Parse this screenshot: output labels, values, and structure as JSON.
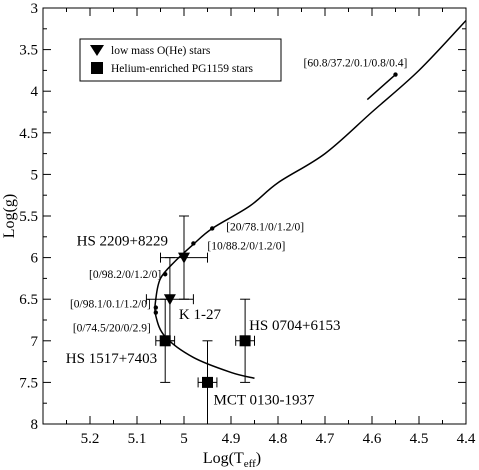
{
  "chart_data": {
    "type": "scatter",
    "title": "",
    "xlabel": "Log(T",
    "xlabel_sub": "eff",
    "xlabel_close": ")",
    "ylabel": "Log(g)",
    "x_reversed": true,
    "y_reversed": true,
    "xlim": [
      5.3,
      4.4
    ],
    "ylim": [
      3.0,
      8.0
    ],
    "x_ticks": [
      "5.2",
      "5.1",
      "5",
      "4.9",
      "4.8",
      "4.7",
      "4.6",
      "4.5",
      "4.4"
    ],
    "x_tick_values": [
      5.2,
      5.1,
      5.0,
      4.9,
      4.8,
      4.7,
      4.6,
      4.5,
      4.4
    ],
    "y_ticks": [
      "3",
      "3.5",
      "4",
      "4.5",
      "5",
      "5.5",
      "6",
      "6.5",
      "7",
      "7.5",
      "8"
    ],
    "y_tick_values": [
      3.0,
      3.5,
      4.0,
      4.5,
      5.0,
      5.5,
      6.0,
      6.5,
      7.0,
      7.5,
      8.0
    ],
    "grid": false,
    "legend_position": "top-left",
    "legend": [
      {
        "label": "low mass O(He) stars",
        "marker": "triangle-down"
      },
      {
        "label": "Helium-enriched PG1159 stars",
        "marker": "square"
      }
    ],
    "series": [
      {
        "name": "low mass O(He) stars",
        "marker": "triangle-down",
        "points": [
          {
            "label": "HS 2209+8229",
            "x": 5.0,
            "y": 6.0,
            "xerr": 0.05,
            "yerr": 0.5
          },
          {
            "label": "K 1-27",
            "x": 5.03,
            "y": 6.5,
            "xerr": 0.05,
            "yerr": 0.5
          }
        ]
      },
      {
        "name": "Helium-enriched PG1159 stars",
        "marker": "square",
        "points": [
          {
            "label": "HS 0704+6153",
            "x": 4.87,
            "y": 7.0,
            "xerr": 0.02,
            "yerr": 0.5
          },
          {
            "label": "HS 1517+7403",
            "x": 5.04,
            "y": 7.0,
            "xerr": 0.02,
            "yerr": 0.5
          },
          {
            "label": "MCT 0130-1937",
            "x": 4.95,
            "y": 7.5,
            "xerr": 0.02,
            "yerr": 0.5
          }
        ]
      }
    ],
    "track": {
      "x": [
        4.4,
        4.5,
        4.6,
        4.7,
        4.8,
        4.86,
        4.94,
        4.98,
        5.02,
        5.05,
        5.06,
        5.06,
        5.04,
        4.98,
        4.9,
        4.85
      ],
      "y": [
        3.15,
        3.75,
        4.25,
        4.75,
        5.1,
        5.38,
        5.65,
        5.84,
        6.05,
        6.25,
        6.5,
        6.7,
        6.95,
        7.2,
        7.38,
        7.45
      ]
    },
    "track_hook": {
      "x": [
        4.55,
        4.61
      ],
      "y": [
        3.8,
        4.1
      ]
    },
    "track_markers": [
      {
        "label": "[60.8/37.2/0.1/0.8/0.4]",
        "x": 4.55,
        "y": 3.8
      },
      {
        "label": "[20/78.1/0/1.2/0]",
        "x": 4.94,
        "y": 5.65
      },
      {
        "label": "[10/88.2/0/1.2/0]",
        "x": 4.98,
        "y": 5.83
      },
      {
        "label": "[0/98.2/0/1.2/0]",
        "x": 5.04,
        "y": 6.2
      },
      {
        "label": "[0/98.1/0.1/1.2/0]",
        "x": 5.06,
        "y": 6.6
      },
      {
        "label": "[0/74.5/20/0/2.9]",
        "x": 5.06,
        "y": 6.66
      }
    ]
  }
}
